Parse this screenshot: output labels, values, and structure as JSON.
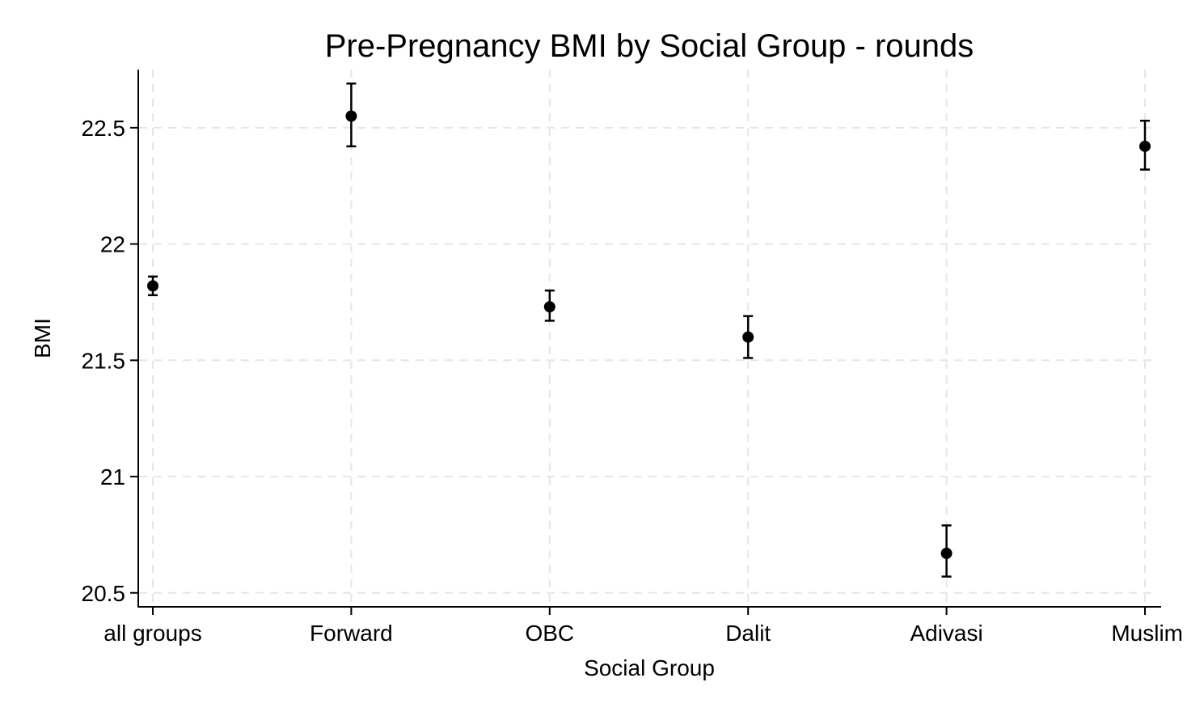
{
  "chart_data": {
    "type": "scatter",
    "title": "Pre-Pregnancy BMI by Social Group - rounds",
    "xlabel": "Social Group",
    "ylabel": "BMI",
    "categories": [
      "all groups",
      "Forward",
      "OBC",
      "Dalit",
      "Adivasi",
      "Muslim"
    ],
    "series": [
      {
        "values": [
          21.82,
          22.55,
          21.73,
          21.6,
          20.67,
          22.42
        ],
        "ci_low": [
          21.78,
          22.42,
          21.67,
          21.51,
          20.57,
          22.32
        ],
        "ci_high": [
          21.86,
          22.69,
          21.8,
          21.69,
          20.79,
          22.53
        ]
      }
    ],
    "ylim": [
      20.44,
      22.75
    ],
    "yticks": [
      "20.5",
      "21",
      "21.5",
      "22",
      "22.5"
    ],
    "grid": true,
    "marker_color": "#000000",
    "grid_color": "#e6e6e6"
  }
}
